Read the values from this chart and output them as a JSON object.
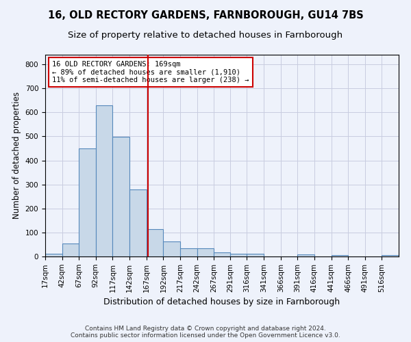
{
  "title1": "16, OLD RECTORY GARDENS, FARNBOROUGH, GU14 7BS",
  "title2": "Size of property relative to detached houses in Farnborough",
  "xlabel": "Distribution of detached houses by size in Farnborough",
  "ylabel": "Number of detached properties",
  "footer1": "Contains HM Land Registry data © Crown copyright and database right 2024.",
  "footer2": "Contains public sector information licensed under the Open Government Licence v3.0.",
  "bin_labels": [
    "17sqm",
    "42sqm",
    "67sqm",
    "92sqm",
    "117sqm",
    "142sqm",
    "167sqm",
    "192sqm",
    "217sqm",
    "242sqm",
    "267sqm",
    "291sqm",
    "316sqm",
    "341sqm",
    "366sqm",
    "391sqm",
    "416sqm",
    "441sqm",
    "466sqm",
    "491sqm",
    "516sqm"
  ],
  "bar_values": [
    12,
    55,
    450,
    628,
    498,
    280,
    115,
    62,
    35,
    35,
    18,
    10,
    10,
    0,
    0,
    8,
    0,
    5,
    0,
    0,
    5
  ],
  "bin_edges": [
    17,
    42,
    67,
    92,
    117,
    142,
    167,
    192,
    217,
    242,
    267,
    291,
    316,
    341,
    366,
    391,
    416,
    441,
    466,
    491,
    516,
    541
  ],
  "bar_color": "#c8d8e8",
  "bar_edgecolor": "#5588bb",
  "vline_x": 169,
  "vline_color": "#cc0000",
  "annotation_line1": "16 OLD RECTORY GARDENS: 169sqm",
  "annotation_line2": "← 89% of detached houses are smaller (1,910)",
  "annotation_line3": "11% of semi-detached houses are larger (238) →",
  "annotation_box_color": "#cc0000",
  "annotation_box_bg": "#ffffff",
  "ylim": [
    0,
    840
  ],
  "yticks": [
    0,
    100,
    200,
    300,
    400,
    500,
    600,
    700,
    800
  ],
  "grid_color": "#c8cce0",
  "background_color": "#eef2fb",
  "title1_fontsize": 10.5,
  "title2_fontsize": 9.5,
  "xlabel_fontsize": 9,
  "ylabel_fontsize": 8.5,
  "tick_fontsize": 7.5,
  "annotation_fontsize": 7.5,
  "footer_fontsize": 6.5
}
